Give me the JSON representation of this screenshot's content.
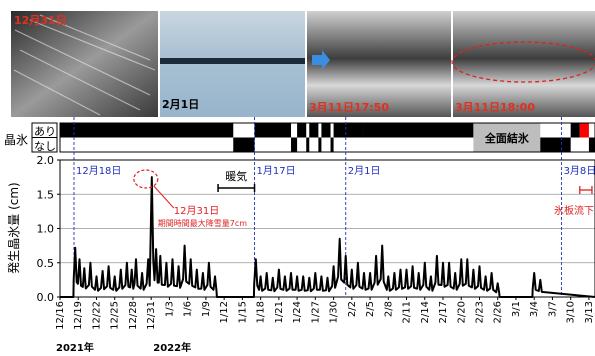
{
  "photos": [
    {
      "caption": "12月31日",
      "caption_color": "#e03020"
    },
    {
      "caption": "2月1日",
      "caption_color": "#000000"
    },
    {
      "caption": "3月11日17:50",
      "caption_color": "#e03020"
    },
    {
      "caption": "3月11日18:00",
      "caption_color": "#e03020"
    }
  ],
  "ice_strip": {
    "label": "晶氷",
    "row_yes": "あり",
    "row_no": "なし",
    "full_freeze_label": "全面結氷"
  },
  "chart_data": {
    "type": "line",
    "ylabel": "発生晶氷量 (cm)",
    "ylim": [
      0,
      2.0
    ],
    "yticks": [
      "0.0",
      "0.5",
      "1.0",
      "1.5",
      "2.0"
    ],
    "xlim": [
      0,
      88
    ],
    "x_start_date": "12/16",
    "xtick_labels": [
      "12/16",
      "12/19",
      "12/22",
      "12/25",
      "12/28",
      "12/31",
      "1/3",
      "1/6",
      "1/9",
      "1/12",
      "1/15",
      "1/18",
      "1/21",
      "1/24",
      "1/27",
      "1/30",
      "2/2",
      "2/5",
      "2/8",
      "2/11",
      "2/14",
      "2/17",
      "2/20",
      "2/23",
      "2/26",
      "3/1",
      "3/4",
      "3/7",
      "3/10",
      "3/13"
    ],
    "year_labels": [
      {
        "text": "2021年",
        "x": 0
      },
      {
        "text": "2022年",
        "x": 16
      }
    ],
    "markers": [
      {
        "label": "12月18日",
        "x": 2.3
      },
      {
        "label": "1月17日",
        "x": 32
      },
      {
        "label": "2月1日",
        "x": 47
      },
      {
        "label": "3月8日",
        "x": 82.5
      }
    ],
    "annotations": {
      "warm_label": "暖気",
      "warm_range": [
        26,
        32
      ],
      "peak_date": "12月31日",
      "peak_note": "期間時間最大降雪量7cm",
      "peak_x": 15.1,
      "peak_y": 1.75,
      "ice_flow_label": "氷板流下",
      "ice_flow_range": [
        85.5,
        87.5
      ]
    },
    "series": [
      {
        "peaks": [
          [
            2.5,
            0.72
          ],
          [
            3.2,
            0.55
          ],
          [
            4,
            0.42
          ],
          [
            5,
            0.5
          ],
          [
            6,
            0.3
          ],
          [
            7,
            0.38
          ],
          [
            8,
            0.45
          ],
          [
            9,
            0.3
          ],
          [
            10,
            0.4
          ],
          [
            11,
            0.5
          ],
          [
            11.8,
            0.4
          ],
          [
            12.5,
            0.55
          ],
          [
            13.5,
            0.35
          ],
          [
            14.5,
            0.55
          ],
          [
            15.1,
            1.75
          ],
          [
            15.8,
            0.7
          ],
          [
            16.5,
            0.6
          ],
          [
            17.5,
            0.5
          ],
          [
            18.5,
            0.55
          ],
          [
            19.5,
            0.45
          ],
          [
            20.5,
            0.75
          ],
          [
            21.5,
            0.55
          ],
          [
            22.5,
            0.4
          ],
          [
            23.5,
            0.35
          ],
          [
            24.5,
            0.5
          ],
          [
            25.5,
            0.3
          ],
          [
            32.2,
            0.55
          ],
          [
            33,
            0.3
          ],
          [
            34,
            0.35
          ],
          [
            35,
            0.28
          ],
          [
            36,
            0.4
          ],
          [
            37,
            0.3
          ],
          [
            38,
            0.35
          ],
          [
            39,
            0.3
          ],
          [
            40,
            0.3
          ],
          [
            41,
            0.28
          ],
          [
            42,
            0.35
          ],
          [
            43,
            0.3
          ],
          [
            44,
            0.28
          ],
          [
            45,
            0.45
          ],
          [
            46,
            0.85
          ],
          [
            47,
            0.6
          ],
          [
            48,
            0.4
          ],
          [
            49,
            0.5
          ],
          [
            50,
            0.35
          ],
          [
            51,
            0.35
          ],
          [
            52,
            0.6
          ],
          [
            53,
            0.75
          ],
          [
            54,
            0.3
          ],
          [
            55,
            0.35
          ],
          [
            56,
            0.4
          ],
          [
            57,
            0.4
          ],
          [
            58,
            0.45
          ],
          [
            59,
            0.35
          ],
          [
            60,
            0.5
          ],
          [
            61,
            0.3
          ],
          [
            62,
            0.6
          ],
          [
            63,
            0.5
          ],
          [
            64,
            0.5
          ],
          [
            65,
            0.35
          ],
          [
            66,
            0.55
          ],
          [
            67,
            0.55
          ],
          [
            68,
            0.4
          ],
          [
            69,
            0.45
          ],
          [
            70,
            0.3
          ],
          [
            71,
            0.35
          ],
          [
            72,
            0.2
          ],
          [
            78,
            0.35
          ],
          [
            79,
            0.25
          ]
        ]
      }
    ]
  }
}
